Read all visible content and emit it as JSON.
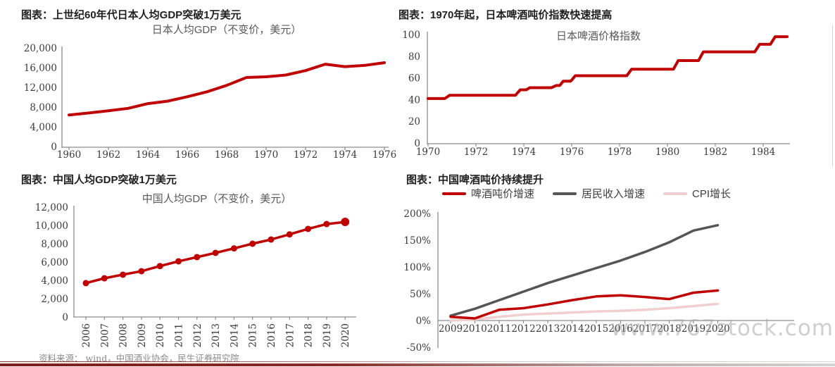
{
  "page": {
    "source_note": "资料来源： wind，中国酒业协会，民生证券研究院",
    "watermark": "www.767stock.com"
  },
  "colors": {
    "line_red": "#c00000",
    "line_gray": "#555555",
    "line_pink": "#f2cfcf",
    "axis": "#8c8c8c",
    "bottom_bar_red": "#7e1d1c"
  },
  "chart_data": [
    {
      "id": "japan_gdp",
      "type": "line",
      "header": "图表：上世纪60年代日本人均GDP突破1万美元",
      "title": "日本人均GDP（不变价，美元）",
      "x": [
        1960,
        1961,
        1962,
        1963,
        1964,
        1965,
        1966,
        1967,
        1968,
        1969,
        1970,
        1971,
        1972,
        1973,
        1974,
        1975,
        1976
      ],
      "series": [
        {
          "name": "日本人均GDP",
          "color": "#c00000",
          "values": [
            6400,
            6800,
            7250,
            7750,
            8700,
            9200,
            10100,
            11100,
            12400,
            14000,
            14150,
            14500,
            15400,
            16700,
            16200,
            16450,
            17000
          ]
        }
      ],
      "ylim": [
        0,
        20000
      ],
      "yticks": [
        0,
        4000,
        8000,
        12000,
        16000,
        20000
      ],
      "ytick_labels": [
        "0",
        "4,000",
        "8,000",
        "12,000",
        "16,000",
        "20,000"
      ],
      "xticks": [
        1960,
        1962,
        1964,
        1966,
        1968,
        1970,
        1972,
        1974,
        1976
      ],
      "xtick_labels": [
        "1960",
        "1962",
        "1964",
        "1966",
        "1968",
        "1970",
        "1972",
        "1974",
        "1976"
      ],
      "grid": false,
      "legend_position": "none"
    },
    {
      "id": "japan_beer",
      "type": "line",
      "header": "图表：1970年起，日本啤酒吨价指数快速提高",
      "title": "日本啤酒价格指数",
      "series": [
        {
          "name": "日本啤酒价格指数",
          "color": "#c00000",
          "points": [
            [
              1970,
              41
            ],
            [
              1970.7,
              41
            ],
            [
              1970.9,
              44
            ],
            [
              1973.65,
              44
            ],
            [
              1973.85,
              49
            ],
            [
              1974.1,
              49
            ],
            [
              1974.25,
              51
            ],
            [
              1975.15,
              51
            ],
            [
              1975.35,
              53
            ],
            [
              1975.5,
              53
            ],
            [
              1975.65,
              57
            ],
            [
              1975.95,
              57
            ],
            [
              1976.0,
              58
            ],
            [
              1976.15,
              62
            ],
            [
              1978.3,
              62
            ],
            [
              1978.5,
              68
            ],
            [
              1980.25,
              68
            ],
            [
              1980.45,
              76
            ],
            [
              1981.3,
              76
            ],
            [
              1981.5,
              84
            ],
            [
              1983.65,
              84
            ],
            [
              1983.85,
              91
            ],
            [
              1984.3,
              91
            ],
            [
              1984.5,
              98
            ],
            [
              1985.0,
              98
            ]
          ]
        }
      ],
      "ylim": [
        0,
        100
      ],
      "yticks": [
        0,
        20,
        40,
        60,
        80,
        100
      ],
      "ytick_labels": [
        "0",
        "20",
        "40",
        "60",
        "80",
        "100"
      ],
      "xticks": [
        1970,
        1972,
        1974,
        1976,
        1978,
        1980,
        1982,
        1984
      ],
      "xtick_labels": [
        "1970",
        "1972",
        "1974",
        "1976",
        "1978",
        "1980",
        "1982",
        "1984"
      ],
      "grid": false,
      "legend_position": "none"
    },
    {
      "id": "china_gdp",
      "type": "line",
      "header": "图表：中国人均GDP突破1万美元",
      "title": "中国人均GDP（不变价，美元）",
      "x": [
        2006,
        2007,
        2008,
        2009,
        2010,
        2011,
        2012,
        2013,
        2014,
        2015,
        2016,
        2017,
        2018,
        2019,
        2020
      ],
      "series": [
        {
          "name": "中国人均GDP",
          "color": "#c00000",
          "markers": true,
          "values": [
            3700,
            4230,
            4620,
            5000,
            5560,
            6080,
            6540,
            7000,
            7490,
            8000,
            8460,
            9020,
            9620,
            10150,
            10380
          ]
        }
      ],
      "ylim": [
        0,
        12000
      ],
      "yticks": [
        0,
        2000,
        4000,
        6000,
        8000,
        10000,
        12000
      ],
      "ytick_labels": [
        "0",
        "2,000",
        "4,000",
        "6,000",
        "8,000",
        "10,000",
        "12,000"
      ],
      "xticks": [
        2006,
        2007,
        2008,
        2009,
        2010,
        2011,
        2012,
        2013,
        2014,
        2015,
        2016,
        2017,
        2018,
        2019,
        2020
      ],
      "xtick_labels": [
        "2006",
        "2007",
        "2008",
        "2009",
        "2010",
        "2011",
        "2012",
        "2013",
        "2014",
        "2015",
        "2016",
        "2017",
        "2018",
        "2019",
        "2020"
      ],
      "grid": false,
      "legend_position": "none"
    },
    {
      "id": "china_beer",
      "type": "line",
      "header": "图表：中国啤酒吨价持续提升",
      "title": "",
      "x": [
        2009,
        2010,
        2011,
        2012,
        2013,
        2014,
        2015,
        2016,
        2017,
        2018,
        2019,
        2020
      ],
      "series": [
        {
          "name": "CPI增长",
          "color": "#f2cfcf",
          "values": [
            0,
            2,
            7,
            11,
            13,
            15,
            17,
            18,
            20,
            23,
            27,
            31
          ]
        },
        {
          "name": "居民收入增速",
          "color": "#555555",
          "values": [
            9,
            22,
            38,
            54,
            70,
            84,
            98,
            112,
            128,
            146,
            168,
            178
          ]
        },
        {
          "name": "啤酒吨价增速",
          "color": "#c00000",
          "values": [
            7,
            4,
            20,
            23,
            30,
            38,
            45,
            47,
            44,
            40,
            52,
            56
          ]
        }
      ],
      "legend_order": [
        "啤酒吨价增速",
        "居民收入增速",
        "CPI增长"
      ],
      "legend_colors": [
        "#c00000",
        "#555555",
        "#f2cfcf"
      ],
      "ylim": [
        -50,
        200
      ],
      "yticks": [
        -50,
        0,
        50,
        100,
        150,
        200
      ],
      "ytick_labels": [
        "-50%",
        "0%",
        "50%",
        "100%",
        "150%",
        "200%"
      ],
      "xticks": [
        2009,
        2010,
        2011,
        2012,
        2013,
        2014,
        2015,
        2016,
        2017,
        2018,
        2019,
        2020
      ],
      "xtick_labels": [
        "2009",
        "2010",
        "2011",
        "2012",
        "2013",
        "2014",
        "2015",
        "2016",
        "2017",
        "2018",
        "2019",
        "2020"
      ],
      "grid": false,
      "legend_position": "top"
    }
  ]
}
